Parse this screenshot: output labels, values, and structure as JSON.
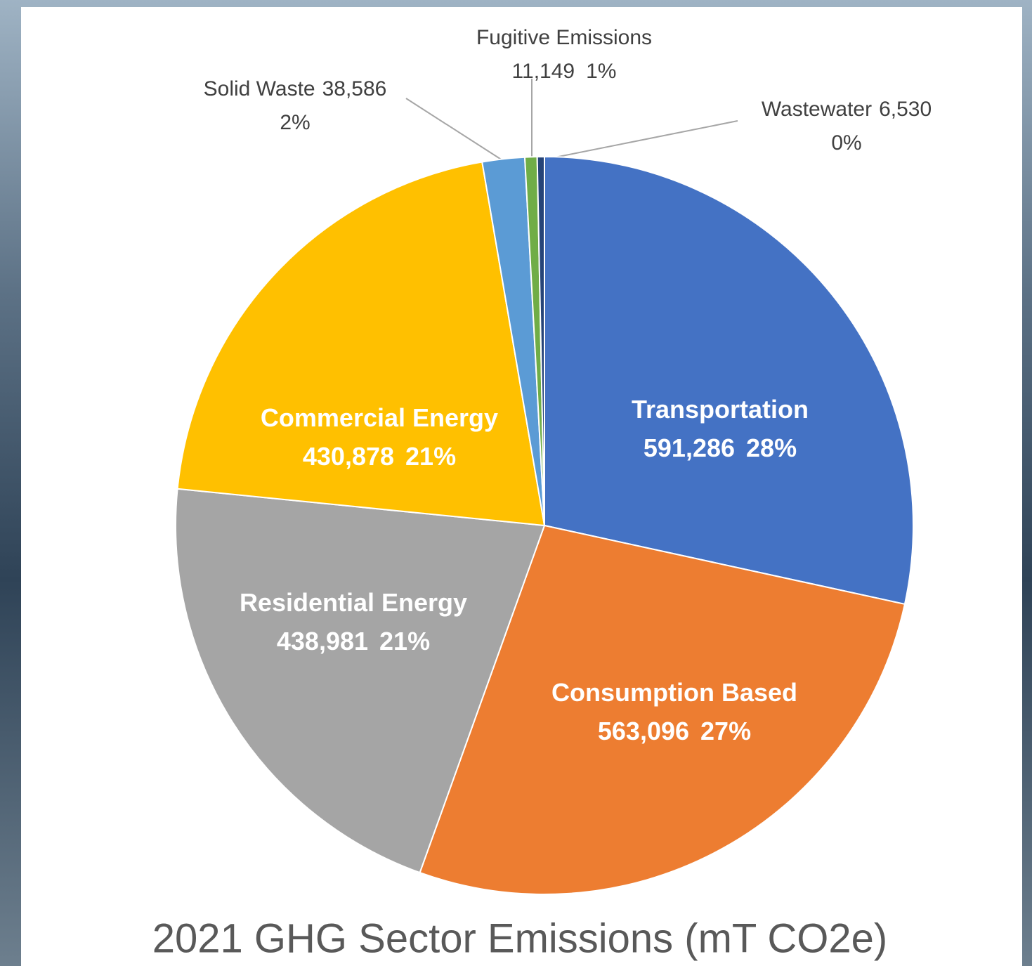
{
  "chart_data": {
    "type": "pie",
    "title": "2021 GHG Sector Emissions (mT CO2e)",
    "categories": [
      "Transportation",
      "Consumption Based",
      "Residential Energy",
      "Commercial Energy",
      "Solid Waste",
      "Fugitive Emissions",
      "Wastewater"
    ],
    "values": [
      591286,
      563096,
      438981,
      430878,
      38586,
      11149,
      6530
    ],
    "value_labels": [
      "591,286",
      "563,096",
      "438,981",
      "430,878",
      "38,586",
      "11,149",
      "6,530"
    ],
    "percent_labels": [
      "28%",
      "27%",
      "21%",
      "21%",
      "2%",
      "1%",
      "0%"
    ],
    "colors": [
      "#4472c4",
      "#ed7d31",
      "#a5a5a5",
      "#ffc000",
      "#5b9bd5",
      "#70ad47",
      "#264478"
    ]
  }
}
